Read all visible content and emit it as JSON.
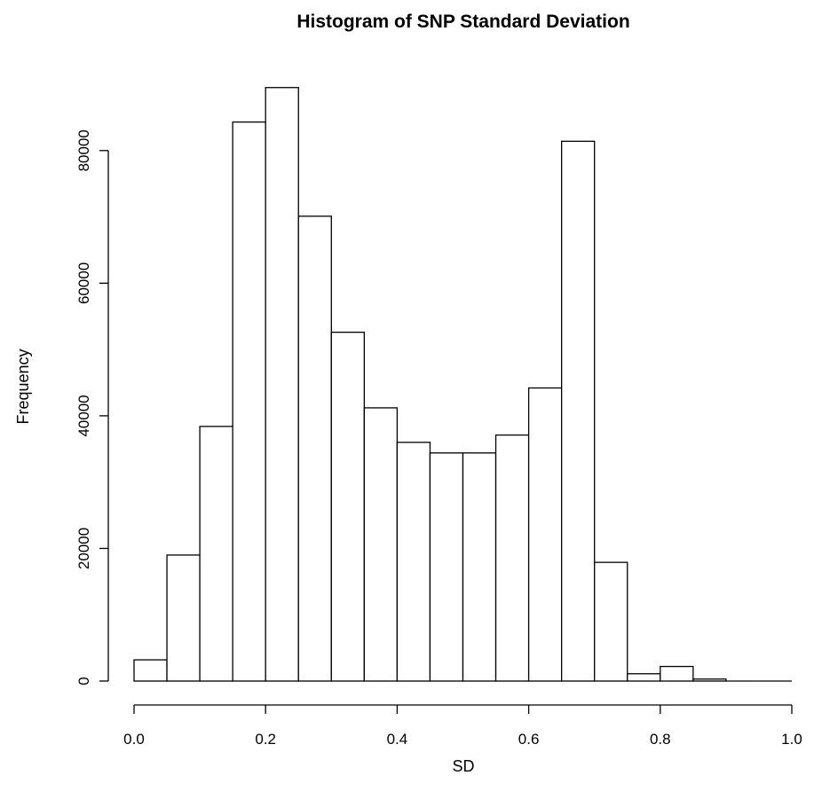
{
  "chart_data": {
    "type": "bar",
    "title": "Histogram of SNP Standard Deviation",
    "xlabel": "SD",
    "ylabel": "Frequency",
    "bins": [
      [
        0.0,
        0.05
      ],
      [
        0.05,
        0.1
      ],
      [
        0.1,
        0.15
      ],
      [
        0.15,
        0.2
      ],
      [
        0.2,
        0.25
      ],
      [
        0.25,
        0.3
      ],
      [
        0.3,
        0.35
      ],
      [
        0.35,
        0.4
      ],
      [
        0.4,
        0.45
      ],
      [
        0.45,
        0.5
      ],
      [
        0.5,
        0.55
      ],
      [
        0.55,
        0.6
      ],
      [
        0.6,
        0.65
      ],
      [
        0.65,
        0.7
      ],
      [
        0.7,
        0.75
      ],
      [
        0.75,
        0.8
      ],
      [
        0.8,
        0.85
      ],
      [
        0.85,
        0.9
      ],
      [
        0.9,
        0.95
      ],
      [
        0.95,
        1.0
      ]
    ],
    "values": [
      3200,
      19000,
      38400,
      84300,
      89500,
      70100,
      52600,
      41200,
      36000,
      34400,
      34400,
      37100,
      44200,
      81400,
      17900,
      1100,
      2200,
      300,
      0,
      0
    ],
    "xlim": [
      0.0,
      1.0
    ],
    "ylim": [
      0,
      90000
    ],
    "x_ticks": [
      0.0,
      0.2,
      0.4,
      0.6,
      0.8,
      1.0
    ],
    "x_tick_labels": [
      "0.0",
      "0.2",
      "0.4",
      "0.6",
      "0.8",
      "1.0"
    ],
    "y_ticks": [
      0,
      20000,
      40000,
      60000,
      80000
    ],
    "y_tick_labels": [
      "0",
      "20000",
      "40000",
      "60000",
      "80000"
    ],
    "grid": false,
    "legend": "none"
  }
}
